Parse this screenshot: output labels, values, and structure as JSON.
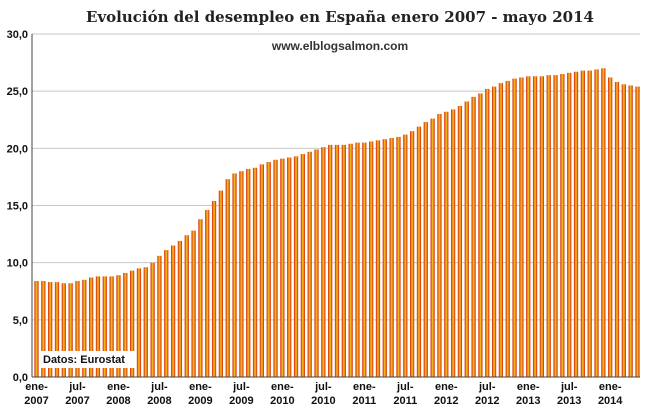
{
  "chart_data": {
    "type": "bar",
    "title": "Evolución del desempleo en España enero 2007 - mayo 2014",
    "watermark": "www.elblogsalmon.com",
    "source": "Datos: Eurostat",
    "xlabel": "",
    "ylabel": "",
    "ylim": [
      0,
      30
    ],
    "yticks": [
      "0,0",
      "5,0",
      "10,0",
      "15,0",
      "20,0",
      "25,0",
      "30,0"
    ],
    "grid": true,
    "legend": "none",
    "colors": {
      "bar_edge": "#d81e0c",
      "bar_center": "#f2c81e",
      "grid": "#c8c8c8",
      "frame": "#444444"
    },
    "xtick_labels": [
      {
        "idx": 0,
        "l1": "ene-",
        "l2": "2007"
      },
      {
        "idx": 6,
        "l1": "jul-",
        "l2": "2007"
      },
      {
        "idx": 12,
        "l1": "ene-",
        "l2": "2008"
      },
      {
        "idx": 18,
        "l1": "jul-",
        "l2": "2008"
      },
      {
        "idx": 24,
        "l1": "ene-",
        "l2": "2009"
      },
      {
        "idx": 30,
        "l1": "jul-",
        "l2": "2009"
      },
      {
        "idx": 36,
        "l1": "ene-",
        "l2": "2010"
      },
      {
        "idx": 42,
        "l1": "jul-",
        "l2": "2010"
      },
      {
        "idx": 48,
        "l1": "ene-",
        "l2": "2011"
      },
      {
        "idx": 54,
        "l1": "jul-",
        "l2": "2011"
      },
      {
        "idx": 60,
        "l1": "ene-",
        "l2": "2012"
      },
      {
        "idx": 66,
        "l1": "jul-",
        "l2": "2012"
      },
      {
        "idx": 72,
        "l1": "ene-",
        "l2": "2013"
      },
      {
        "idx": 78,
        "l1": "jul-",
        "l2": "2013"
      },
      {
        "idx": 84,
        "l1": "ene-",
        "l2": "2014"
      }
    ],
    "categories": [
      "ene-2007",
      "feb-2007",
      "mar-2007",
      "abr-2007",
      "may-2007",
      "jun-2007",
      "jul-2007",
      "ago-2007",
      "sep-2007",
      "oct-2007",
      "nov-2007",
      "dic-2007",
      "ene-2008",
      "feb-2008",
      "mar-2008",
      "abr-2008",
      "may-2008",
      "jun-2008",
      "jul-2008",
      "ago-2008",
      "sep-2008",
      "oct-2008",
      "nov-2008",
      "dic-2008",
      "ene-2009",
      "feb-2009",
      "mar-2009",
      "abr-2009",
      "may-2009",
      "jun-2009",
      "jul-2009",
      "ago-2009",
      "sep-2009",
      "oct-2009",
      "nov-2009",
      "dic-2009",
      "ene-2010",
      "feb-2010",
      "mar-2010",
      "abr-2010",
      "may-2010",
      "jun-2010",
      "jul-2010",
      "ago-2010",
      "sep-2010",
      "oct-2010",
      "nov-2010",
      "dic-2010",
      "ene-2011",
      "feb-2011",
      "mar-2011",
      "abr-2011",
      "may-2011",
      "jun-2011",
      "jul-2011",
      "ago-2011",
      "sep-2011",
      "oct-2011",
      "nov-2011",
      "dic-2011",
      "ene-2012",
      "feb-2012",
      "mar-2012",
      "abr-2012",
      "may-2012",
      "jun-2012",
      "jul-2012",
      "ago-2012",
      "sep-2012",
      "oct-2012",
      "nov-2012",
      "dic-2012",
      "ene-2013",
      "feb-2013",
      "mar-2013",
      "abr-2013",
      "may-2013",
      "jun-2013",
      "jul-2013",
      "ago-2013",
      "sep-2013",
      "oct-2013",
      "nov-2013",
      "dic-2013",
      "ene-2014",
      "feb-2014",
      "mar-2014",
      "abr-2014",
      "may-2014"
    ],
    "values": [
      8.4,
      8.4,
      8.3,
      8.3,
      8.2,
      8.2,
      8.4,
      8.5,
      8.7,
      8.8,
      8.8,
      8.8,
      8.9,
      9.1,
      9.3,
      9.5,
      9.6,
      10.0,
      10.6,
      11.1,
      11.5,
      11.9,
      12.4,
      12.8,
      13.8,
      14.6,
      15.4,
      16.3,
      17.3,
      17.8,
      18.0,
      18.2,
      18.3,
      18.6,
      18.8,
      19.0,
      19.1,
      19.2,
      19.3,
      19.5,
      19.7,
      19.9,
      20.1,
      20.3,
      20.3,
      20.3,
      20.4,
      20.5,
      20.5,
      20.6,
      20.7,
      20.8,
      20.9,
      21.0,
      21.2,
      21.5,
      21.9,
      22.3,
      22.6,
      23.0,
      23.2,
      23.4,
      23.7,
      24.1,
      24.5,
      24.8,
      25.2,
      25.4,
      25.7,
      25.9,
      26.1,
      26.2,
      26.3,
      26.3,
      26.3,
      26.4,
      26.4,
      26.5,
      26.6,
      26.7,
      26.8,
      26.8,
      26.9,
      27.0,
      26.2,
      25.8,
      25.6,
      25.5,
      25.4
    ]
  }
}
